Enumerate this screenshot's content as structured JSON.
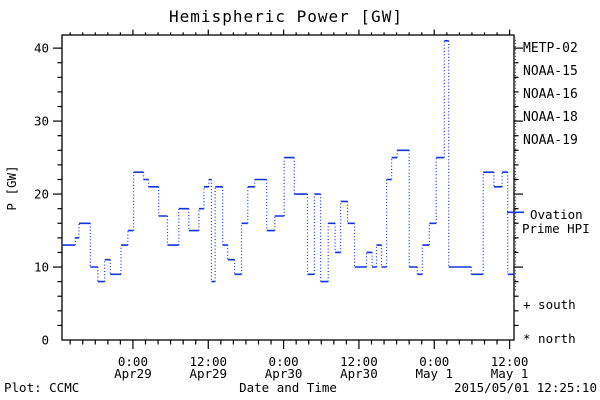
{
  "chart_data": {
    "type": "line",
    "title": "Hemispheric Power [GW]",
    "xlabel": "Date and Time",
    "ylabel": "P [GW]",
    "ylim": [
      0,
      41.8
    ],
    "x_range_hours": 72,
    "x_minor_step_hours": 2,
    "y_minor_step": 2,
    "yticks": [
      0,
      10,
      20,
      30,
      40
    ],
    "xticks": [
      {
        "t": 11.3,
        "time": "0:00",
        "date": "Apr29"
      },
      {
        "t": 23.3,
        "time": "12:00",
        "date": "Apr29"
      },
      {
        "t": 35.3,
        "time": "0:00",
        "date": "Apr30"
      },
      {
        "t": 47.3,
        "time": "12:00",
        "date": "Apr30"
      },
      {
        "t": 59.3,
        "time": "0:00",
        "date": "May 1"
      },
      {
        "t": 71.3,
        "time": "12:00",
        "date": "May 1"
      }
    ],
    "series": [
      {
        "name": "Ovation Prime HPI",
        "color": "#1535e0",
        "style": "steps-dotted-risers",
        "steps_t_gw": [
          [
            0,
            13
          ],
          [
            2.1,
            14
          ],
          [
            2.7,
            16
          ],
          [
            4.5,
            10
          ],
          [
            5.7,
            8
          ],
          [
            6.8,
            11
          ],
          [
            7.7,
            9
          ],
          [
            9.4,
            13
          ],
          [
            10.5,
            15
          ],
          [
            11.4,
            23
          ],
          [
            13,
            22
          ],
          [
            13.8,
            21
          ],
          [
            15.4,
            17
          ],
          [
            16.8,
            13
          ],
          [
            18.6,
            18
          ],
          [
            20.2,
            15
          ],
          [
            21.8,
            18
          ],
          [
            22.6,
            21
          ],
          [
            23.4,
            22
          ],
          [
            23.8,
            8
          ],
          [
            24.4,
            21
          ],
          [
            25.6,
            13
          ],
          [
            26.4,
            11
          ],
          [
            27.5,
            9
          ],
          [
            28.6,
            16
          ],
          [
            29.6,
            21
          ],
          [
            30.7,
            22
          ],
          [
            32.6,
            15
          ],
          [
            33.9,
            17
          ],
          [
            35.4,
            25
          ],
          [
            37,
            20
          ],
          [
            39.1,
            9
          ],
          [
            40.2,
            20
          ],
          [
            41.2,
            8
          ],
          [
            42.4,
            16
          ],
          [
            43.5,
            12
          ],
          [
            44.4,
            19
          ],
          [
            45.5,
            16
          ],
          [
            46.6,
            10
          ],
          [
            48.5,
            12
          ],
          [
            49.4,
            10
          ],
          [
            50.1,
            13
          ],
          [
            50.9,
            10
          ],
          [
            51.7,
            22
          ],
          [
            52.5,
            25
          ],
          [
            53.4,
            26
          ],
          [
            55.3,
            10
          ],
          [
            56.6,
            9
          ],
          [
            57.4,
            13
          ],
          [
            58.5,
            16
          ],
          [
            59.6,
            25
          ],
          [
            60.9,
            41
          ],
          [
            61.6,
            10
          ],
          [
            65.2,
            9
          ],
          [
            67.1,
            23
          ],
          [
            68.8,
            21
          ],
          [
            70.1,
            23
          ],
          [
            71,
            9
          ]
        ],
        "end_t": 72
      }
    ],
    "right_edge_line_gw": [
      6.8,
      41.5
    ],
    "current_value_marker_gw": 17.5
  },
  "legend": {
    "items": [
      {
        "label": "METP-02",
        "color": "#000000"
      },
      {
        "label": "NOAA-15",
        "color": "#2433d9"
      },
      {
        "label": "NOAA-16",
        "color": "#3ec0f0"
      },
      {
        "label": "NOAA-18",
        "color": "#63d98a"
      },
      {
        "label": "NOAA-19",
        "color": "#f7a233"
      }
    ]
  },
  "annotations": {
    "ovation_line1": "Ovation",
    "ovation_line2": "Prime HPI",
    "south_marker": "+ south",
    "north_marker": "* north"
  },
  "footer": {
    "left": "Plot: CCMC",
    "right": "2015/05/01 12:25:10"
  }
}
